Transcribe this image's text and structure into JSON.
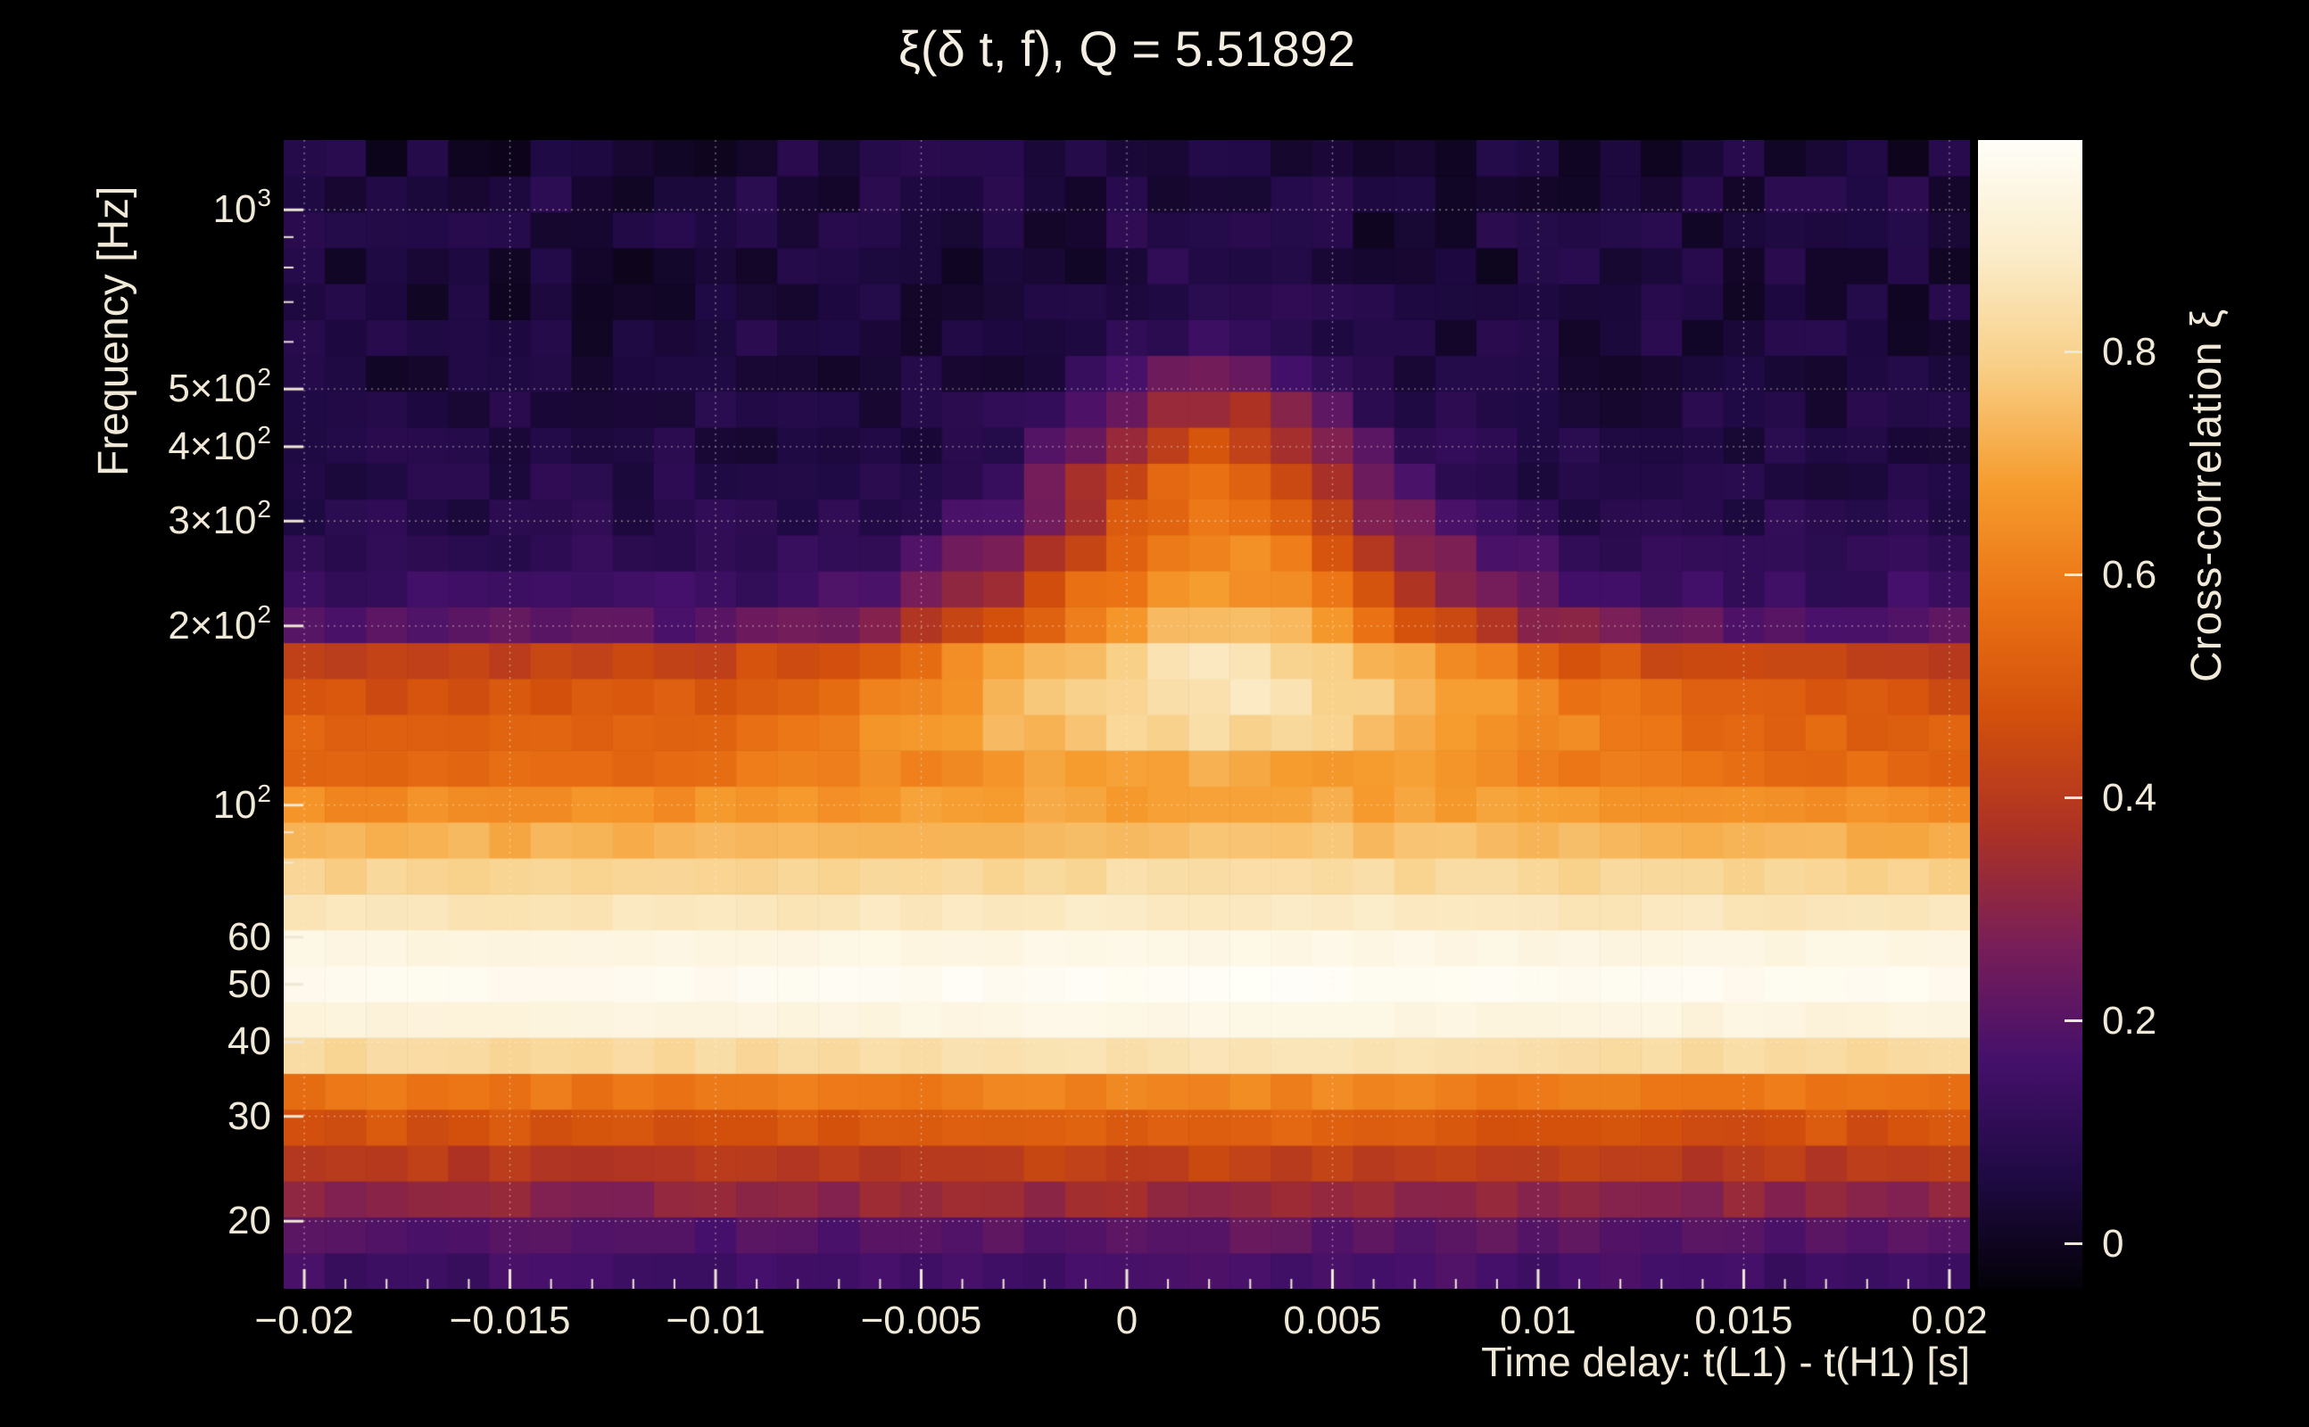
{
  "chart_data": {
    "type": "heatmap",
    "title": "ξ(δ t, f), Q = 5.51892",
    "q_value": 5.51892,
    "xlabel": "Time delay: t(L1) - t(H1) [s]",
    "ylabel": "Frequency [Hz]",
    "colorbar_label": "Cross-correlation ξ",
    "x_range": [
      -0.0205,
      0.0205
    ],
    "x_bins": 41,
    "y_range": [
      15.4,
      1310
    ],
    "y_scale": "log",
    "z_range": [
      -0.04,
      0.99
    ],
    "grid": true,
    "background": "#000000",
    "text_color": "#f1e9d8",
    "x_ticks": [
      {
        "v": -0.02,
        "label": "−0.02"
      },
      {
        "v": -0.015,
        "label": "−0.015"
      },
      {
        "v": -0.01,
        "label": "−0.01"
      },
      {
        "v": -0.005,
        "label": "−0.005"
      },
      {
        "v": 0,
        "label": "0"
      },
      {
        "v": 0.005,
        "label": "0.005"
      },
      {
        "v": 0.01,
        "label": "0.01"
      },
      {
        "v": 0.015,
        "label": "0.015"
      },
      {
        "v": 0.02,
        "label": "0.02"
      }
    ],
    "y_ticks": [
      {
        "f": 1000,
        "base": "10",
        "exp": "3"
      },
      {
        "f": 500,
        "base": "5×10",
        "exp": "2"
      },
      {
        "f": 400,
        "base": "4×10",
        "exp": "2"
      },
      {
        "f": 300,
        "base": "3×10",
        "exp": "2"
      },
      {
        "f": 200,
        "base": "2×10",
        "exp": "2"
      },
      {
        "f": 100,
        "base": "10",
        "exp": "2"
      },
      {
        "f": 60,
        "base": "60"
      },
      {
        "f": 50,
        "base": "50"
      },
      {
        "f": 40,
        "base": "40"
      },
      {
        "f": 30,
        "base": "30"
      },
      {
        "f": 20,
        "base": "20"
      }
    ],
    "z_ticks": [
      {
        "v": 0,
        "label": "0"
      },
      {
        "v": 0.2,
        "label": "0.2"
      },
      {
        "v": 0.4,
        "label": "0.4"
      },
      {
        "v": 0.6,
        "label": "0.6"
      },
      {
        "v": 0.8,
        "label": "0.8"
      }
    ],
    "colormap": [
      {
        "t": 0.0,
        "c": "#040208"
      },
      {
        "t": 0.1,
        "c": "#200a45"
      },
      {
        "t": 0.2,
        "c": "#45106b"
      },
      {
        "t": 0.3,
        "c": "#791e58"
      },
      {
        "t": 0.4,
        "c": "#ad3224"
      },
      {
        "t": 0.5,
        "c": "#d3500c"
      },
      {
        "t": 0.6,
        "c": "#eb7314"
      },
      {
        "t": 0.7,
        "c": "#f69c2e"
      },
      {
        "t": 0.8,
        "c": "#f8ce84"
      },
      {
        "t": 0.9,
        "c": "#fbecc9"
      },
      {
        "t": 1.0,
        "c": "#fffef8"
      }
    ],
    "peak_center": 0.0022,
    "rows": [
      {
        "f": 16.5,
        "base": 0.15,
        "amp": 0.02,
        "sigma": 0.006,
        "noise": 0.03
      },
      {
        "f": 19.0,
        "base": 0.19,
        "amp": 0.02,
        "sigma": 0.006,
        "noise": 0.03
      },
      {
        "f": 21.8,
        "base": 0.3,
        "amp": 0.03,
        "sigma": 0.006,
        "noise": 0.03
      },
      {
        "f": 25.1,
        "base": 0.4,
        "amp": 0.03,
        "sigma": 0.006,
        "noise": 0.03
      },
      {
        "f": 28.8,
        "base": 0.48,
        "amp": 0.04,
        "sigma": 0.006,
        "noise": 0.03
      },
      {
        "f": 33.1,
        "base": 0.58,
        "amp": 0.04,
        "sigma": 0.006,
        "noise": 0.025
      },
      {
        "f": 38.0,
        "base": 0.82,
        "amp": 0.03,
        "sigma": 0.006,
        "noise": 0.015
      },
      {
        "f": 43.7,
        "base": 0.93,
        "amp": 0.02,
        "sigma": 0.006,
        "noise": 0.01
      },
      {
        "f": 50.2,
        "base": 0.97,
        "amp": 0.01,
        "sigma": 0.006,
        "noise": 0.008
      },
      {
        "f": 57.7,
        "base": 0.94,
        "amp": 0.01,
        "sigma": 0.006,
        "noise": 0.01
      },
      {
        "f": 66.3,
        "base": 0.86,
        "amp": 0.02,
        "sigma": 0.006,
        "noise": 0.015
      },
      {
        "f": 76.1,
        "base": 0.8,
        "amp": 0.03,
        "sigma": 0.006,
        "noise": 0.02
      },
      {
        "f": 87.5,
        "base": 0.72,
        "amp": 0.04,
        "sigma": 0.0065,
        "noise": 0.02
      },
      {
        "f": 100.5,
        "base": 0.64,
        "amp": 0.06,
        "sigma": 0.007,
        "noise": 0.025
      },
      {
        "f": 115.5,
        "base": 0.55,
        "amp": 0.16,
        "sigma": 0.0065,
        "noise": 0.03
      },
      {
        "f": 132.7,
        "base": 0.52,
        "amp": 0.3,
        "sigma": 0.006,
        "noise": 0.03
      },
      {
        "f": 152.4,
        "base": 0.48,
        "amp": 0.38,
        "sigma": 0.0055,
        "noise": 0.03
      },
      {
        "f": 175.1,
        "base": 0.42,
        "amp": 0.43,
        "sigma": 0.005,
        "noise": 0.03
      },
      {
        "f": 201.2,
        "base": 0.2,
        "amp": 0.55,
        "sigma": 0.0045,
        "noise": 0.035
      },
      {
        "f": 231.2,
        "base": 0.13,
        "amp": 0.56,
        "sigma": 0.004,
        "noise": 0.035
      },
      {
        "f": 265.6,
        "base": 0.1,
        "amp": 0.55,
        "sigma": 0.0035,
        "noise": 0.035
      },
      {
        "f": 305.2,
        "base": 0.08,
        "amp": 0.52,
        "sigma": 0.003,
        "noise": 0.035
      },
      {
        "f": 350.6,
        "base": 0.07,
        "amp": 0.5,
        "sigma": 0.0028,
        "noise": 0.035
      },
      {
        "f": 402.8,
        "base": 0.06,
        "amp": 0.42,
        "sigma": 0.0025,
        "noise": 0.035
      },
      {
        "f": 462.8,
        "base": 0.06,
        "amp": 0.3,
        "sigma": 0.0022,
        "noise": 0.04
      },
      {
        "f": 531.7,
        "base": 0.05,
        "amp": 0.2,
        "sigma": 0.002,
        "noise": 0.04
      },
      {
        "f": 610.9,
        "base": 0.05,
        "amp": 0.1,
        "sigma": 0.002,
        "noise": 0.045
      },
      {
        "f": 701.9,
        "base": 0.04,
        "amp": 0.06,
        "sigma": 0.002,
        "noise": 0.045
      },
      {
        "f": 806.4,
        "base": 0.04,
        "amp": 0.04,
        "sigma": 0.002,
        "noise": 0.05
      },
      {
        "f": 926.5,
        "base": 0.04,
        "amp": 0.03,
        "sigma": 0.002,
        "noise": 0.05
      },
      {
        "f": 1064.5,
        "base": 0.05,
        "amp": 0.02,
        "sigma": 0.002,
        "noise": 0.05
      },
      {
        "f": 1223.1,
        "base": 0.04,
        "amp": 0.02,
        "sigma": 0.002,
        "noise": 0.05
      }
    ]
  }
}
